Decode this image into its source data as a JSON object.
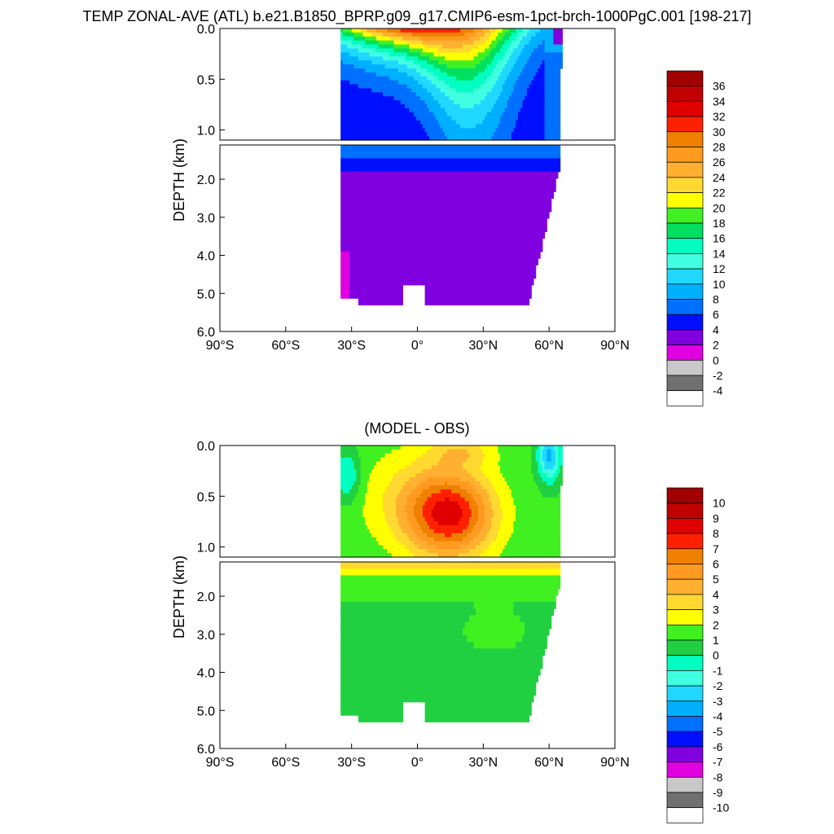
{
  "title": "TEMP ZONAL-AVE (ATL) b.e21.B1850_BPRP.g09_g17.CMIP6-esm-1pct-brch-1000PgC.001 [198-217]",
  "chart_data": [
    {
      "type": "heatmap",
      "title": "",
      "xlabel": "",
      "ylabel": "DEPTH (km)",
      "x_ticks": [
        "90°S",
        "60°S",
        "30°S",
        "0°",
        "30°N",
        "60°N",
        "90°N"
      ],
      "x_range": [
        -90,
        90
      ],
      "y_ticks_upper": [
        "0.0",
        "0.5",
        "1.0"
      ],
      "y_range_upper": [
        0,
        1.1
      ],
      "y_ticks_lower": [
        "2.0",
        "3.0",
        "4.0",
        "5.0",
        "6.0"
      ],
      "y_range_lower": [
        1.1,
        6.0
      ],
      "colorbar_labels": [
        "36",
        "34",
        "32",
        "30",
        "28",
        "26",
        "24",
        "22",
        "20",
        "18",
        "16",
        "14",
        "12",
        "10",
        "8",
        "6",
        "4",
        "2",
        "0",
        "-2",
        "-4"
      ],
      "colors": [
        "#a00000",
        "#c00000",
        "#e00000",
        "#ff2000",
        "#f08000",
        "#ff9a20",
        "#ffb030",
        "#ffd830",
        "#ffff00",
        "#40f020",
        "#00e060",
        "#00ffc0",
        "#40ffe0",
        "#20d8ff",
        "#00b0ff",
        "#0070ff",
        "#0010ff",
        "#8000e0",
        "#e000e0",
        "#c8c8c8",
        "#707070",
        "#ffffff"
      ],
      "field_description": "Atlantic zonal-mean temperature (°C); warm surface near 0°, cold deep water below 2 km"
    },
    {
      "type": "heatmap",
      "title": "(MODEL - OBS)",
      "xlabel": "",
      "ylabel": "DEPTH (km)",
      "x_ticks": [
        "90°S",
        "60°S",
        "30°S",
        "0°",
        "30°N",
        "60°N",
        "90°N"
      ],
      "x_range": [
        -90,
        90
      ],
      "y_ticks_upper": [
        "0.0",
        "0.5",
        "1.0"
      ],
      "y_range_upper": [
        0,
        1.1
      ],
      "y_ticks_lower": [
        "2.0",
        "3.0",
        "4.0",
        "5.0",
        "6.0"
      ],
      "y_range_lower": [
        1.1,
        6.0
      ],
      "colorbar_labels": [
        "10",
        "9",
        "8",
        "7",
        "6",
        "5",
        "4",
        "3",
        "2",
        "1",
        "0",
        "-1",
        "-2",
        "-3",
        "-4",
        "-5",
        "-6",
        "-7",
        "-8",
        "-9",
        "-10"
      ],
      "colors": [
        "#a00000",
        "#c00000",
        "#e00000",
        "#ff2000",
        "#f08000",
        "#ff9a20",
        "#ffb030",
        "#ffd830",
        "#ffff00",
        "#40f020",
        "#20d040",
        "#00ffc0",
        "#40ffe0",
        "#20d8ff",
        "#00b0ff",
        "#0070ff",
        "#0010ff",
        "#8000e0",
        "#e000e0",
        "#c8c8c8",
        "#707070",
        "#ffffff"
      ],
      "field_description": "Model minus observed temperature difference (°C); warm bias max ~8 near 15°N at 0.7 km"
    }
  ]
}
